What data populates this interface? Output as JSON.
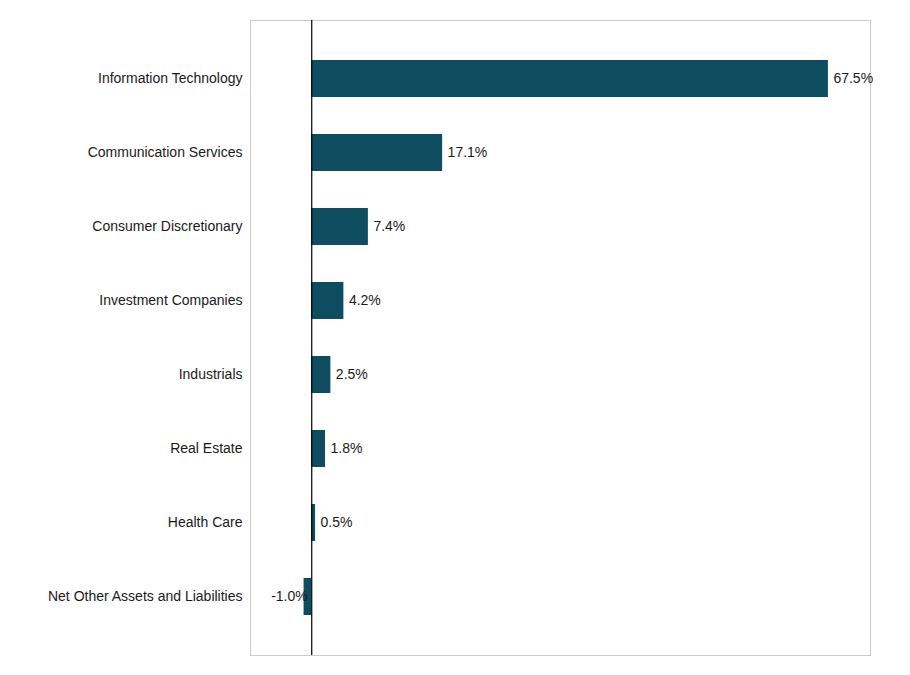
{
  "chart_data": {
    "type": "bar",
    "orientation": "horizontal",
    "categories": [
      "Net Other Assets and Liabilities",
      "Health Care",
      "Real Estate",
      "Industrials",
      "Investment Companies",
      "Consumer Discretionary",
      "Communication Services",
      "Information Technology"
    ],
    "values": [
      -1.0,
      0.5,
      1.8,
      2.5,
      4.2,
      7.4,
      17.1,
      67.5
    ],
    "value_labels": [
      "-1.0%",
      "0.5%",
      "1.8%",
      "2.5%",
      "4.2%",
      "7.4%",
      "17.1%",
      "67.5%"
    ],
    "color": "#0e4c5f",
    "xlim": [
      -8,
      73
    ],
    "data_labels": true,
    "tick_labels": "y",
    "grid": false
  }
}
